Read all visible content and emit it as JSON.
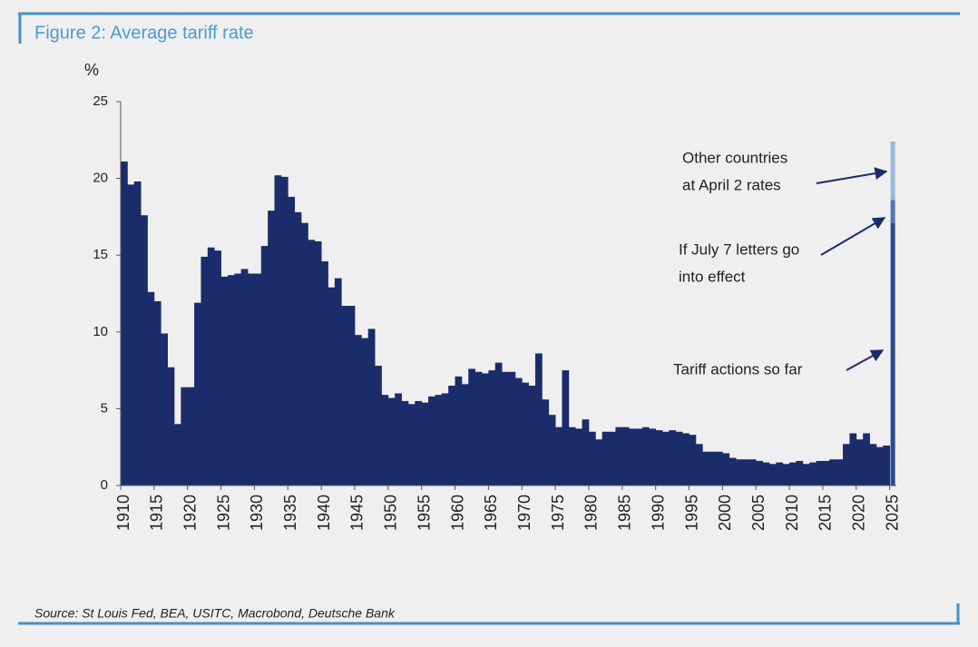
{
  "chart_data": {
    "type": "bar",
    "title": "Figure 2: Average tariff rate",
    "y_label": "%",
    "source": "Source: St Louis Fed, BEA, USITC, Macrobond, Deutsche Bank",
    "color": "#1b2c6b",
    "x": [
      1910,
      1911,
      1912,
      1913,
      1914,
      1915,
      1916,
      1917,
      1918,
      1919,
      1920,
      1921,
      1922,
      1923,
      1924,
      1925,
      1926,
      1927,
      1928,
      1929,
      1930,
      1931,
      1932,
      1933,
      1934,
      1935,
      1936,
      1937,
      1938,
      1939,
      1940,
      1941,
      1942,
      1943,
      1944,
      1945,
      1946,
      1947,
      1948,
      1949,
      1950,
      1951,
      1952,
      1953,
      1954,
      1955,
      1956,
      1957,
      1958,
      1959,
      1960,
      1961,
      1962,
      1963,
      1964,
      1965,
      1966,
      1967,
      1968,
      1969,
      1970,
      1971,
      1972,
      1973,
      1974,
      1975,
      1976,
      1977,
      1978,
      1979,
      1980,
      1981,
      1982,
      1983,
      1984,
      1985,
      1986,
      1987,
      1988,
      1989,
      1990,
      1991,
      1992,
      1993,
      1994,
      1995,
      1996,
      1997,
      1998,
      1999,
      2000,
      2001,
      2002,
      2003,
      2004,
      2005,
      2006,
      2007,
      2008,
      2009,
      2010,
      2011,
      2012,
      2013,
      2014,
      2015,
      2016,
      2017,
      2018,
      2019,
      2020,
      2021,
      2022,
      2023,
      2024
    ],
    "values": [
      21.1,
      19.6,
      19.8,
      17.6,
      12.6,
      12.0,
      9.9,
      7.7,
      4.0,
      6.4,
      6.4,
      11.9,
      14.9,
      15.5,
      15.3,
      13.6,
      13.7,
      13.8,
      14.1,
      13.8,
      13.8,
      15.6,
      17.9,
      20.2,
      20.1,
      18.8,
      17.8,
      17.1,
      16.0,
      15.9,
      14.6,
      12.9,
      13.5,
      11.7,
      11.7,
      9.8,
      9.6,
      10.2,
      7.8,
      5.9,
      5.7,
      6.0,
      5.5,
      5.3,
      5.5,
      5.4,
      5.8,
      5.9,
      6.0,
      6.5,
      7.1,
      6.6,
      7.6,
      7.4,
      7.3,
      7.5,
      8.0,
      7.4,
      7.4,
      7.0,
      6.7,
      6.5,
      8.6,
      5.6,
      4.6,
      3.8,
      7.5,
      3.8,
      3.7,
      4.3,
      3.5,
      3.0,
      3.5,
      3.5,
      3.8,
      3.8,
      3.7,
      3.7,
      3.8,
      3.7,
      3.6,
      3.5,
      3.6,
      3.5,
      3.4,
      3.3,
      2.7,
      2.2,
      2.2,
      2.2,
      2.1,
      1.8,
      1.7,
      1.7,
      1.7,
      1.6,
      1.5,
      1.4,
      1.5,
      1.4,
      1.5,
      1.6,
      1.4,
      1.5,
      1.6,
      1.6,
      1.7,
      1.7,
      2.7,
      3.4,
      3.0,
      3.4,
      2.7,
      2.5,
      2.6
    ],
    "projection": {
      "x": 2025,
      "segments": [
        {
          "label": [
            "Tariff actions so far"
          ],
          "value": 17.1,
          "color": "#2a4a8f"
        },
        {
          "label": [
            "If July 7 letters go",
            "into effect"
          ],
          "value": 1.5,
          "color": "#4d78b8"
        },
        {
          "label": [
            "Other countries",
            "at April 2 rates"
          ],
          "value": 3.8,
          "color": "#9cb8de"
        }
      ]
    },
    "xlim": [
      1910,
      2026
    ],
    "xticks": [
      1910,
      1915,
      1920,
      1925,
      1930,
      1935,
      1940,
      1945,
      1950,
      1955,
      1960,
      1965,
      1970,
      1975,
      1980,
      1985,
      1990,
      1995,
      2000,
      2005,
      2010,
      2015,
      2020,
      2025
    ],
    "ylim": [
      0,
      25
    ],
    "yticks": [
      0,
      5,
      10,
      15,
      20,
      25
    ]
  }
}
